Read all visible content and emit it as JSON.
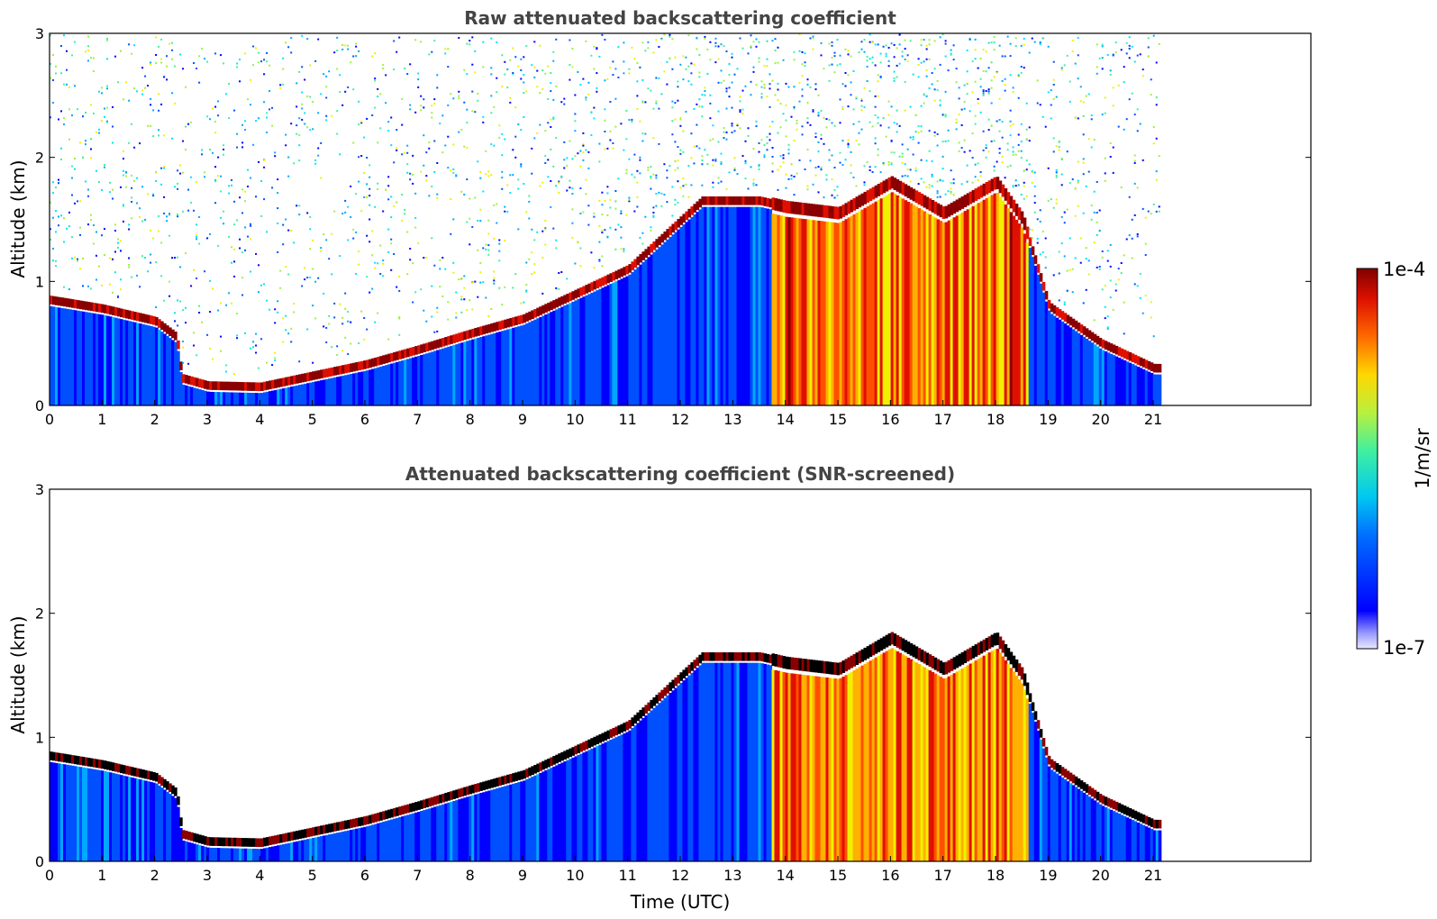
{
  "chart_data": [
    {
      "type": "heatmap",
      "title": "Raw attenuated backscattering coefficient",
      "xlabel": "",
      "ylabel": "Altitude (km)",
      "xlim": [
        0,
        24
      ],
      "ylim": [
        0,
        3
      ],
      "xticks": [
        0,
        1,
        2,
        3,
        4,
        5,
        6,
        7,
        8,
        9,
        10,
        11,
        12,
        13,
        14,
        15,
        16,
        17,
        18,
        19,
        20,
        21
      ],
      "yticks": [
        0,
        1,
        2,
        3
      ],
      "data_end_time": 21.15,
      "cloud_top_km": [
        [
          0,
          0.85
        ],
        [
          1,
          0.78
        ],
        [
          2,
          0.68
        ],
        [
          2.4,
          0.55
        ],
        [
          2.5,
          0.22
        ],
        [
          3,
          0.16
        ],
        [
          4,
          0.15
        ],
        [
          5,
          0.24
        ],
        [
          6,
          0.33
        ],
        [
          7,
          0.45
        ],
        [
          8,
          0.58
        ],
        [
          9,
          0.7
        ],
        [
          10,
          0.9
        ],
        [
          11,
          1.1
        ],
        [
          12.4,
          1.65
        ],
        [
          13.5,
          1.65
        ],
        [
          14,
          1.6
        ],
        [
          15,
          1.55
        ],
        [
          16,
          1.8
        ],
        [
          17,
          1.55
        ],
        [
          18,
          1.8
        ],
        [
          18.5,
          1.5
        ],
        [
          19,
          0.8
        ],
        [
          20,
          0.5
        ],
        [
          21,
          0.3
        ]
      ],
      "grid": false
    },
    {
      "type": "heatmap",
      "title": "Attenuated backscattering coefficient (SNR-screened)",
      "xlabel": "Time (UTC)",
      "ylabel": "Altitude (km)",
      "xlim": [
        0,
        24
      ],
      "ylim": [
        0,
        3
      ],
      "xticks": [
        0,
        1,
        2,
        3,
        4,
        5,
        6,
        7,
        8,
        9,
        10,
        11,
        12,
        13,
        14,
        15,
        16,
        17,
        18,
        19,
        20,
        21
      ],
      "yticks": [
        0,
        1,
        2,
        3
      ],
      "data_end_time": 21.15,
      "grid": false
    }
  ],
  "colorbar": {
    "max_label": "1e-4",
    "min_label": "1e-7",
    "unit_label": "1/m/sr",
    "colormap": "jet",
    "scale": "log"
  }
}
